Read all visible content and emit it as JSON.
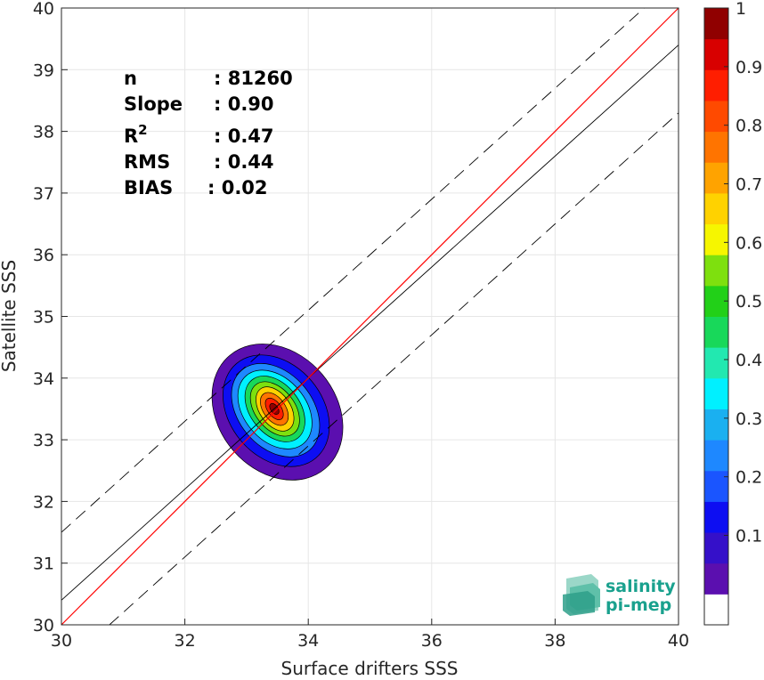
{
  "chart_data": {
    "type": "heatmap",
    "xlabel": "Surface drifters SSS",
    "ylabel": "Satellite SSS",
    "xlim": [
      30,
      40
    ],
    "ylim": [
      30,
      40
    ],
    "x_ticks": [
      "30",
      "32",
      "34",
      "36",
      "38",
      "40"
    ],
    "y_ticks": [
      "30",
      "31",
      "32",
      "33",
      "34",
      "35",
      "36",
      "37",
      "38",
      "39",
      "40"
    ],
    "grid": true,
    "stats": [
      {
        "label": "n",
        "value": ": 81260"
      },
      {
        "label": "Slope",
        "value": ": 0.90"
      },
      {
        "label": "R",
        "sup": "2",
        "value": ": 0.47"
      },
      {
        "label": "RMS",
        "value": ": 0.44"
      },
      {
        "label": "BIAS",
        "value": ": 0.02"
      }
    ],
    "lines": {
      "identity": {
        "slope": 1.0,
        "intercept": 0.0,
        "color": "#ff0000"
      },
      "fit": {
        "slope": 0.9,
        "intercept": 3.4,
        "color": "#000000"
      },
      "upper_bound": {
        "slope": 0.9,
        "intercept": 4.5,
        "style": "dashed"
      },
      "lower_bound": {
        "slope": 0.9,
        "intercept": 2.3,
        "style": "dashed"
      }
    },
    "density_center": [
      33.45,
      33.5
    ],
    "contour_levels": [
      {
        "level": 0.05,
        "cx": 33.5,
        "cy": 33.45,
        "rx": 0.95,
        "ry": 1.2,
        "rot": -50
      },
      {
        "level": 0.15,
        "cx": 33.48,
        "cy": 33.47,
        "rx": 0.75,
        "ry": 1.0,
        "rot": -50
      },
      {
        "level": 0.25,
        "cx": 33.47,
        "cy": 33.48,
        "rx": 0.6,
        "ry": 0.85,
        "rot": -50
      },
      {
        "level": 0.35,
        "cx": 33.46,
        "cy": 33.49,
        "rx": 0.5,
        "ry": 0.72,
        "rot": -50
      },
      {
        "level": 0.45,
        "cx": 33.46,
        "cy": 33.5,
        "rx": 0.4,
        "ry": 0.6,
        "rot": -52
      },
      {
        "level": 0.55,
        "cx": 33.46,
        "cy": 33.5,
        "rx": 0.32,
        "ry": 0.5,
        "rot": -52
      },
      {
        "level": 0.65,
        "cx": 33.46,
        "cy": 33.5,
        "rx": 0.25,
        "ry": 0.4,
        "rot": -55
      },
      {
        "level": 0.75,
        "cx": 33.45,
        "cy": 33.5,
        "rx": 0.18,
        "ry": 0.3,
        "rot": -55
      },
      {
        "level": 0.85,
        "cx": 33.45,
        "cy": 33.5,
        "rx": 0.11,
        "ry": 0.2,
        "rot": -55
      },
      {
        "level": 0.95,
        "cx": 33.45,
        "cy": 33.5,
        "rx": 0.06,
        "ry": 0.1,
        "rot": -55
      }
    ],
    "colorbar": {
      "ticks": [
        "0.1",
        "0.2",
        "0.3",
        "0.4",
        "0.5",
        "0.6",
        "0.7",
        "0.8",
        "0.9",
        "1"
      ],
      "colors": [
        "#ffffff",
        "#5b0faf",
        "#3510c9",
        "#0d0ef2",
        "#1a55ff",
        "#1e88ff",
        "#1ab0f0",
        "#00f0ff",
        "#22e8b0",
        "#18d85a",
        "#22d018",
        "#7ee00e",
        "#f6f600",
        "#ffd200",
        "#ffa300",
        "#ff7400",
        "#ff4a00",
        "#ff1e00",
        "#d80000",
        "#900000"
      ]
    }
  },
  "logo": {
    "line1": "salinity",
    "line2": "pi-mep"
  }
}
